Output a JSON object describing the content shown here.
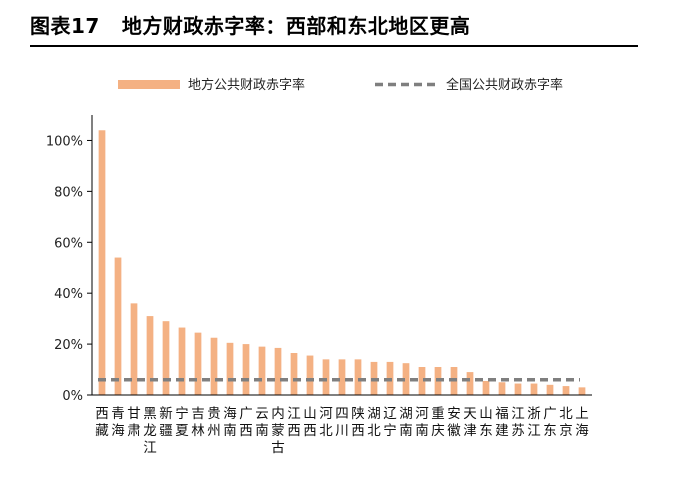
{
  "figure": {
    "number": "图表17",
    "title": "地方财政赤字率：西部和东北地区更高"
  },
  "colors": {
    "bar": "#F4B183",
    "national_line": "#7F7F7F",
    "axis": "#000000"
  },
  "chart_data": {
    "type": "bar",
    "title": "",
    "xlabel": "",
    "ylabel": "",
    "ylim": [
      0,
      1.1
    ],
    "y_ticks": [
      0,
      0.2,
      0.4,
      0.6,
      0.8,
      1.0
    ],
    "y_tick_labels": [
      "0%",
      "20%",
      "40%",
      "60%",
      "80%",
      "100%"
    ],
    "legend_position": "top",
    "categories": [
      "西藏",
      "青海",
      "甘肃",
      "黑龙江",
      "新疆",
      "宁夏",
      "吉林",
      "贵州",
      "海南",
      "广西",
      "云南",
      "内蒙古",
      "江西",
      "山西",
      "河北",
      "四川",
      "陕西",
      "湖北",
      "辽宁",
      "湖南",
      "河南",
      "重庆",
      "安徽",
      "天津",
      "山东",
      "福建",
      "江苏",
      "浙江",
      "广东",
      "北京",
      "上海"
    ],
    "series": [
      {
        "name": "地方公共财政赤字率",
        "kind": "bar",
        "values": [
          1.04,
          0.54,
          0.36,
          0.31,
          0.29,
          0.265,
          0.245,
          0.225,
          0.205,
          0.2,
          0.19,
          0.185,
          0.165,
          0.155,
          0.14,
          0.14,
          0.14,
          0.13,
          0.13,
          0.125,
          0.11,
          0.11,
          0.11,
          0.09,
          0.055,
          0.05,
          0.045,
          0.045,
          0.04,
          0.035,
          0.03
        ]
      },
      {
        "name": "全国公共财政赤字率",
        "kind": "line",
        "value": 0.06
      }
    ]
  }
}
